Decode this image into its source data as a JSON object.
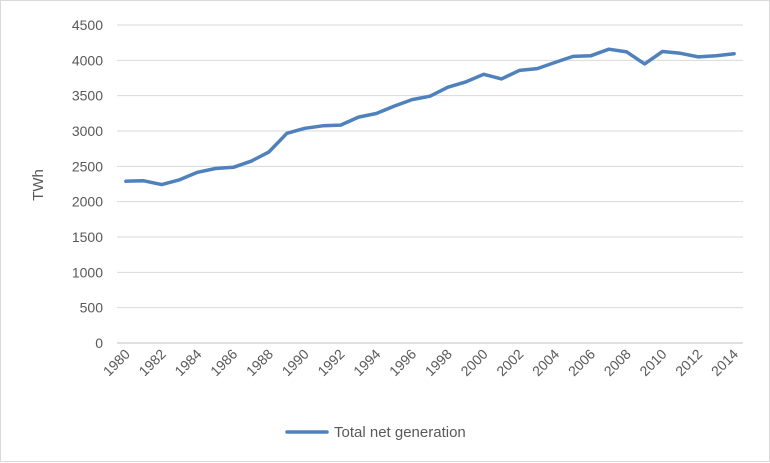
{
  "chart_data": {
    "type": "line",
    "ylabel": "TWh",
    "xlabel": "",
    "ylim": [
      0,
      4500
    ],
    "y_ticks": [
      0,
      500,
      1000,
      1500,
      2000,
      2500,
      3000,
      3500,
      4000,
      4500
    ],
    "x_tick_labels": [
      "1980",
      "1982",
      "1984",
      "1986",
      "1988",
      "1990",
      "1992",
      "1994",
      "1996",
      "1998",
      "2000",
      "2002",
      "2004",
      "2006",
      "2008",
      "2010",
      "2012",
      "2014"
    ],
    "x": [
      1980,
      1981,
      1982,
      1983,
      1984,
      1985,
      1986,
      1987,
      1988,
      1989,
      1990,
      1991,
      1992,
      1993,
      1994,
      1995,
      1996,
      1997,
      1998,
      1999,
      2000,
      2001,
      2002,
      2003,
      2004,
      2005,
      2006,
      2007,
      2008,
      2009,
      2010,
      2011,
      2012,
      2013,
      2014
    ],
    "grid": "horizontal",
    "legend_position": "bottom",
    "series": [
      {
        "name": "Total net generation",
        "color": "#4f81bd",
        "values": [
          2290,
          2295,
          2241,
          2310,
          2416,
          2470,
          2487,
          2572,
          2704,
          2967,
          3038,
          3073,
          3084,
          3197,
          3248,
          3353,
          3444,
          3492,
          3620,
          3695,
          3802,
          3737,
          3858,
          3883,
          3971,
          4055,
          4065,
          4157,
          4119,
          3950,
          4125,
          4100,
          4048,
          4066,
          4093
        ]
      }
    ]
  }
}
